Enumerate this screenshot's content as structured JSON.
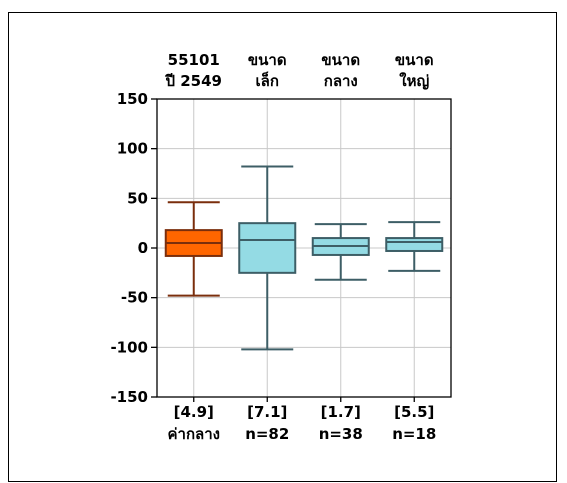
{
  "colors": {
    "highlight_fill": "#ff6600",
    "highlight_stroke": "#7a2e0c",
    "group_fill": "#94dbe4",
    "group_stroke": "#3d5e66",
    "grid": "#c8c8c8"
  },
  "chart_data": {
    "type": "box",
    "title": "",
    "xlabel": "",
    "ylabel": "",
    "ylim": [
      -150,
      150
    ],
    "yticks": [
      150,
      100,
      50,
      0,
      -50,
      -100,
      -150
    ],
    "ytick_labels": [
      "150",
      "100",
      "50",
      "0",
      "-50",
      "-100",
      "-150"
    ],
    "grid": true,
    "groups": [
      {
        "top_label": [
          "55101",
          "ปี 2549"
        ],
        "bottom_label": [
          "[4.9]",
          "ค่ากลาง"
        ],
        "highlight": true,
        "whisker_low": -48,
        "q1": -8,
        "median": 5,
        "q3": 18,
        "whisker_high": 46
      },
      {
        "top_label": [
          "ขนาด",
          "เล็ก"
        ],
        "bottom_label": [
          "[7.1]",
          "n=82"
        ],
        "highlight": false,
        "whisker_low": -102,
        "q1": -25,
        "median": 8,
        "q3": 25,
        "whisker_high": 82
      },
      {
        "top_label": [
          "ขนาด",
          "กลาง"
        ],
        "bottom_label": [
          "[1.7]",
          "n=38"
        ],
        "highlight": false,
        "whisker_low": -32,
        "q1": -7,
        "median": 2,
        "q3": 10,
        "whisker_high": 24
      },
      {
        "top_label": [
          "ขนาด",
          "ใหญ่"
        ],
        "bottom_label": [
          "[5.5]",
          "n=18"
        ],
        "highlight": false,
        "whisker_low": -23,
        "q1": -3,
        "median": 6,
        "q3": 10,
        "whisker_high": 26
      }
    ]
  }
}
